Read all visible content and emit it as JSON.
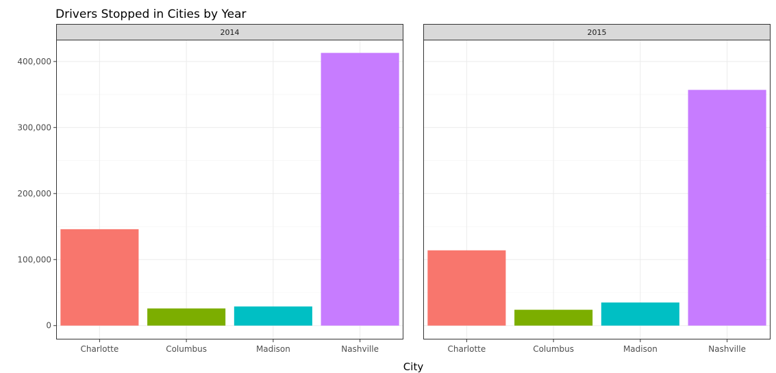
{
  "chart_data": {
    "type": "bar",
    "title": "Drivers Stopped in Cities by Year",
    "xlabel": "City",
    "ylabel": "",
    "categories": [
      "Charlotte",
      "Columbus",
      "Madison",
      "Nashville"
    ],
    "panels": [
      {
        "label": "2014",
        "values": [
          146000,
          26000,
          29000,
          413000
        ]
      },
      {
        "label": "2015",
        "values": [
          114000,
          24000,
          35000,
          357000
        ]
      }
    ],
    "yticks": [
      0,
      100000,
      200000,
      300000,
      400000
    ],
    "ytick_labels": [
      "0",
      "100,000",
      "200,000",
      "300,000",
      "400,000"
    ],
    "ylim": [
      -21000,
      433000
    ],
    "colors": [
      "#F8766D",
      "#7CAE00",
      "#00BFC4",
      "#C77CFF"
    ],
    "grid": true,
    "legend": "none"
  }
}
